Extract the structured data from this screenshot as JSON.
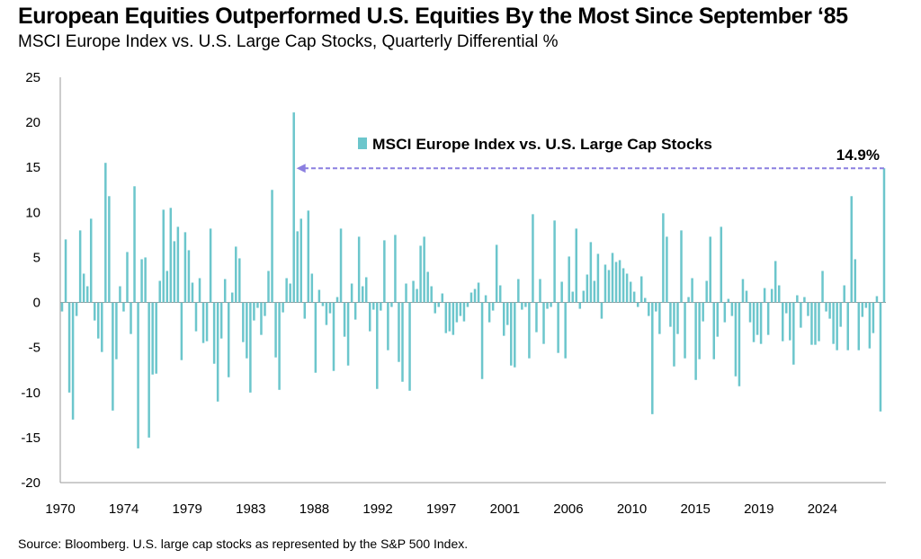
{
  "title": "European Equities Outperformed U.S. Equities By the Most Since September ‘85",
  "subtitle": "MSCI Europe Index vs. U.S. Large Cap Stocks, Quarterly Differential %",
  "source": "Source: Bloomberg. U.S. large cap stocks as represented by the S&P 500 Index.",
  "colors": {
    "bar": "#6cc6cc",
    "annotation": "#8b7fe0",
    "grid": "#cccccc"
  },
  "chart_data": {
    "type": "bar",
    "series": [
      {
        "name": "MSCI Europe Index vs. U.S. Large Cap Stocks",
        "start": "1970-Q1",
        "frequency": "quarterly",
        "values": [
          -1,
          7,
          -10,
          -13,
          -1.5,
          8,
          3.2,
          1.8,
          9.3,
          -2,
          -4,
          -5.5,
          15.5,
          11.8,
          -12,
          -6.3,
          1.8,
          -1,
          5.6,
          -3.5,
          12.9,
          -16.2,
          4.8,
          5,
          -15,
          -8,
          -7.9,
          2.4,
          10.3,
          3.5,
          10.5,
          6.8,
          8.4,
          -6.4,
          7.8,
          5.8,
          2.2,
          -3.2,
          2.7,
          -4.5,
          -4.3,
          8.2,
          -6.8,
          -11,
          -4,
          2.6,
          -8.3,
          1.1,
          6.2,
          4.9,
          -4.4,
          -6.2,
          -10,
          -2,
          -0.6,
          -3.6,
          -1.5,
          3.5,
          12.5,
          -6.1,
          -9.7,
          -1.1,
          2.7,
          2.1,
          21.1,
          7.9,
          9.3,
          -1.8,
          10.2,
          3.2,
          -7.8,
          1.4,
          -0.4,
          -2.5,
          -1.2,
          -7.6,
          0.6,
          8.2,
          -3.8,
          -7,
          2.1,
          -1.9,
          7.3,
          1.8,
          2.8,
          -3.2,
          -0.8,
          -9.6,
          -0.9,
          6.9,
          -5.3,
          -0.5,
          7.5,
          -6.6,
          -8.8,
          2.1,
          -9.8,
          2.4,
          1.5,
          6.3,
          7.3,
          3.4,
          1.8,
          -1.2,
          -0.5,
          1,
          -3.4,
          -3.2,
          -3.6,
          -2.2,
          -1.5,
          -2.1,
          -0.5,
          1.1,
          1.5,
          2.2,
          -8.5,
          0.8,
          -2.2,
          -0.9,
          6.4,
          1.9,
          -3.7,
          -2.5,
          -7,
          -7.2,
          2.6,
          -0.8,
          -0.5,
          -6.2,
          9.8,
          -3.3,
          2.6,
          -4.6,
          -0.7,
          -0.5,
          9.1,
          -5.6,
          2.3,
          -6.2,
          5.1,
          1.2,
          8.2,
          -0.7,
          1.3,
          3.1,
          6.7,
          2.4,
          5.4,
          -1.8,
          4.2,
          3.6,
          5.5,
          4.5,
          4.7,
          3.8,
          3.2,
          2.3,
          1.2,
          -0.5,
          2.9,
          0.5,
          -1.5,
          -12.4,
          -1,
          -3.5,
          9.9,
          7.3,
          -2.7,
          -7.1,
          -3.5,
          8,
          -6.2,
          0.6,
          2.7,
          -8.6,
          -6.3,
          -2.1,
          2.4,
          7.3,
          -6.3,
          -3.8,
          8.4,
          -2.2,
          0.4,
          -1.5,
          -8.2,
          -9.3,
          2.6,
          1.3,
          -2.2,
          -4.4,
          -3.6,
          -4.6,
          1.6,
          -3.6,
          1.5,
          4.6,
          1.9,
          -4.3,
          -1.2,
          -4.2,
          -6.9,
          0.8,
          -2.8,
          0.6,
          -1.5,
          -4.7,
          -4.7,
          -4.3,
          3.5,
          -1,
          -1.8,
          -4.6,
          -5.3,
          -2.7,
          1.9,
          -5.3,
          11.8,
          4.8,
          -5.3,
          -1.6,
          -0.6,
          -5.1,
          -3.4,
          0.7,
          -12.1,
          14.9
        ]
      }
    ],
    "x_tick_labels": [
      "1970",
      "1974",
      "1979",
      "1983",
      "1988",
      "1992",
      "1997",
      "2001",
      "2006",
      "2010",
      "2015",
      "2019",
      "2024"
    ],
    "y_ticks": [
      25,
      20,
      15,
      10,
      5,
      0,
      -5,
      -10,
      -15,
      -20
    ],
    "ylim": [
      -20,
      25
    ],
    "grid": false,
    "legend": {
      "label": "MSCI Europe Index vs. U.S. Large Cap Stocks",
      "placement": "top-center"
    },
    "annotation": {
      "label": "14.9%",
      "value": 14.9,
      "note": "dashed arrow to Sep 1985 peak"
    }
  }
}
